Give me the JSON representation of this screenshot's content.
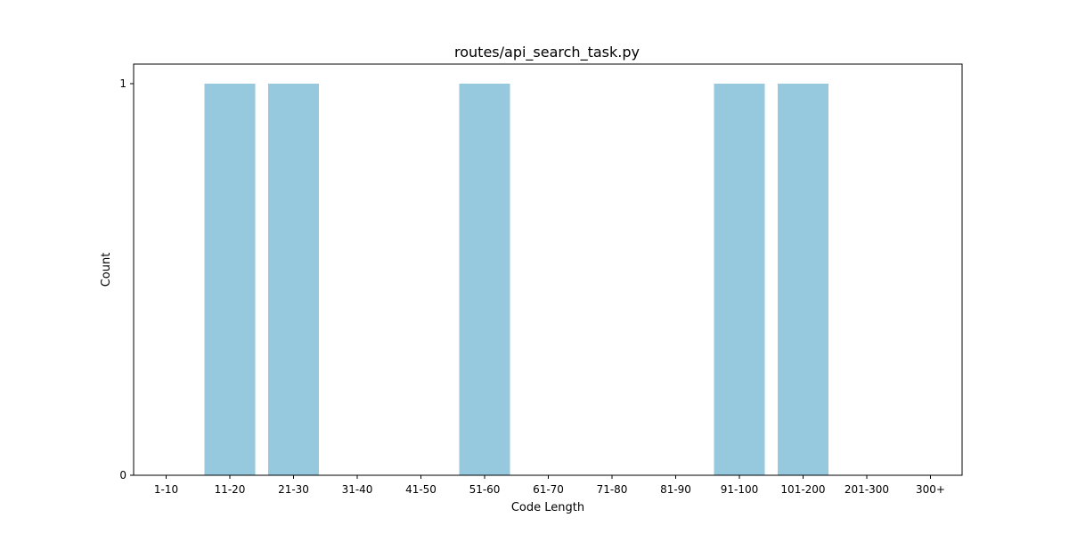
{
  "chart_data": {
    "type": "bar",
    "title": "routes/api_search_task.py",
    "xlabel": "Code Length",
    "ylabel": "Count",
    "categories": [
      "1-10",
      "11-20",
      "21-30",
      "31-40",
      "41-50",
      "51-60",
      "61-70",
      "71-80",
      "81-90",
      "91-100",
      "101-200",
      "201-300",
      "300+"
    ],
    "values": [
      0,
      1,
      1,
      0,
      0,
      1,
      0,
      0,
      0,
      1,
      1,
      0,
      0
    ],
    "ylim": [
      0,
      1.05
    ],
    "yticks": [
      0,
      1
    ],
    "grid": false,
    "bar_color": "#96c9dd"
  }
}
